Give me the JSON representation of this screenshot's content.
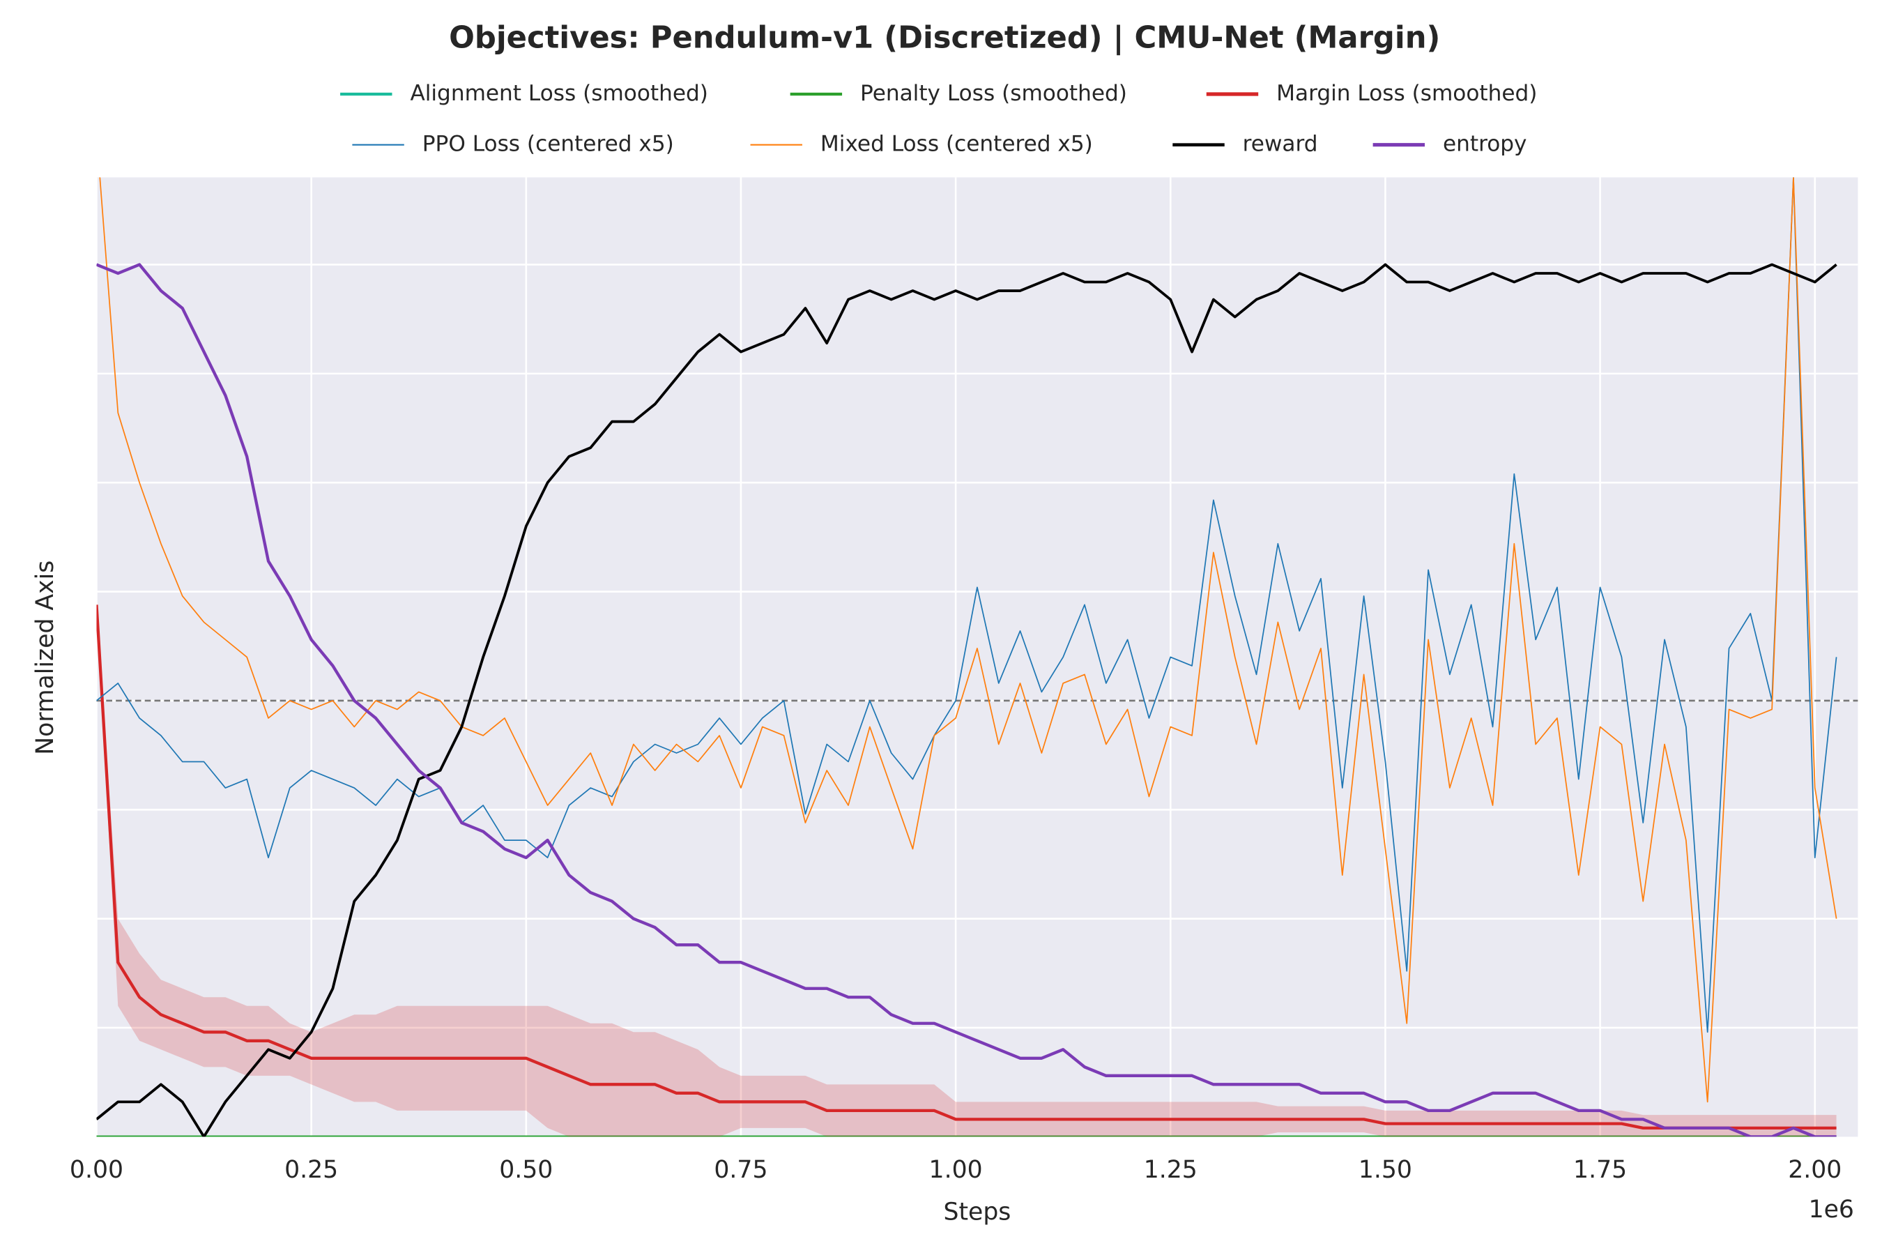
{
  "chart_data": {
    "type": "line",
    "title": "Objectives: Pendulum-v1 (Discretized) | CMU-Net (Margin)",
    "x_label": "Steps",
    "y_label": "Normalized Axis",
    "x_offset_label": "1e6",
    "xlim": [
      0,
      2050000
    ],
    "ylim": [
      0,
      1.1
    ],
    "xticks": [
      {
        "value": 0,
        "label": "0.00"
      },
      {
        "value": 250000,
        "label": "0.25"
      },
      {
        "value": 500000,
        "label": "0.50"
      },
      {
        "value": 750000,
        "label": "0.75"
      },
      {
        "value": 1000000,
        "label": "1.00"
      },
      {
        "value": 1250000,
        "label": "1.25"
      },
      {
        "value": 1500000,
        "label": "1.50"
      },
      {
        "value": 1750000,
        "label": "1.75"
      },
      {
        "value": 2000000,
        "label": "2.00"
      }
    ],
    "ygrid": [
      0.125,
      0.25,
      0.375,
      0.5,
      0.625,
      0.75,
      0.875,
      1.0
    ],
    "hline": 0.5,
    "grid": true,
    "x": [
      0,
      25000,
      50000,
      75000,
      100000,
      125000,
      150000,
      175000,
      200000,
      225000,
      250000,
      275000,
      300000,
      325000,
      350000,
      375000,
      400000,
      425000,
      450000,
      475000,
      500000,
      525000,
      550000,
      575000,
      600000,
      625000,
      650000,
      675000,
      700000,
      725000,
      750000,
      775000,
      800000,
      825000,
      850000,
      875000,
      900000,
      925000,
      950000,
      975000,
      1000000,
      1025000,
      1050000,
      1075000,
      1100000,
      1125000,
      1150000,
      1175000,
      1200000,
      1225000,
      1250000,
      1275000,
      1300000,
      1325000,
      1350000,
      1375000,
      1400000,
      1425000,
      1450000,
      1475000,
      1500000,
      1525000,
      1550000,
      1575000,
      1600000,
      1625000,
      1650000,
      1675000,
      1700000,
      1725000,
      1750000,
      1775000,
      1800000,
      1825000,
      1850000,
      1875000,
      1900000,
      1925000,
      1950000,
      1975000,
      2000000,
      2025000
    ],
    "series": [
      {
        "name": "Alignment Loss (smoothed)",
        "color": "#1abc9c",
        "linewidth": 2,
        "x": [
          0,
          2025000
        ],
        "values": [
          0,
          0
        ]
      },
      {
        "name": "Penalty Loss (smoothed)",
        "color": "#2ca02c",
        "linewidth": 2,
        "x": [
          0,
          2025000
        ],
        "values": [
          0,
          0
        ]
      },
      {
        "name": "Margin Loss (smoothed)",
        "color": "#d62728",
        "linewidth": 2.5,
        "values": [
          0.61,
          0.2,
          0.16,
          0.14,
          0.13,
          0.12,
          0.12,
          0.11,
          0.11,
          0.1,
          0.09,
          0.09,
          0.09,
          0.09,
          0.09,
          0.09,
          0.09,
          0.09,
          0.09,
          0.09,
          0.09,
          0.08,
          0.07,
          0.06,
          0.06,
          0.06,
          0.06,
          0.05,
          0.05,
          0.04,
          0.04,
          0.04,
          0.04,
          0.04,
          0.03,
          0.03,
          0.03,
          0.03,
          0.03,
          0.03,
          0.02,
          0.02,
          0.02,
          0.02,
          0.02,
          0.02,
          0.02,
          0.02,
          0.02,
          0.02,
          0.02,
          0.02,
          0.02,
          0.02,
          0.02,
          0.02,
          0.02,
          0.02,
          0.02,
          0.02,
          0.015,
          0.015,
          0.015,
          0.015,
          0.015,
          0.015,
          0.015,
          0.015,
          0.015,
          0.015,
          0.015,
          0.015,
          0.01,
          0.01,
          0.01,
          0.01,
          0.01,
          0.01,
          0.01,
          0.01,
          0.01,
          0.01
        ],
        "spread": [
          0,
          0.05,
          0.05,
          0.04,
          0.04,
          0.04,
          0.04,
          0.04,
          0.04,
          0.03,
          0.03,
          0.04,
          0.05,
          0.05,
          0.06,
          0.06,
          0.06,
          0.06,
          0.06,
          0.06,
          0.06,
          0.07,
          0.07,
          0.07,
          0.07,
          0.06,
          0.06,
          0.06,
          0.05,
          0.04,
          0.03,
          0.03,
          0.03,
          0.03,
          0.03,
          0.03,
          0.03,
          0.03,
          0.03,
          0.03,
          0.02,
          0.02,
          0.02,
          0.02,
          0.02,
          0.02,
          0.02,
          0.02,
          0.02,
          0.02,
          0.02,
          0.02,
          0.02,
          0.02,
          0.02,
          0.015,
          0.015,
          0.015,
          0.015,
          0.015,
          0.015,
          0.015,
          0.015,
          0.015,
          0.015,
          0.015,
          0.015,
          0.015,
          0.015,
          0.015,
          0.015,
          0.015,
          0.015,
          0.015,
          0.015,
          0.015,
          0.015,
          0.015,
          0.015,
          0.015,
          0.015,
          0.015
        ]
      },
      {
        "name": "PPO Loss (centered x5)",
        "color": "#1f77b4",
        "linewidth": 1,
        "values": [
          0.5,
          0.52,
          0.48,
          0.46,
          0.43,
          0.43,
          0.4,
          0.41,
          0.32,
          0.4,
          0.42,
          0.41,
          0.4,
          0.38,
          0.41,
          0.39,
          0.4,
          0.36,
          0.38,
          0.34,
          0.34,
          0.32,
          0.38,
          0.4,
          0.39,
          0.43,
          0.45,
          0.44,
          0.45,
          0.48,
          0.45,
          0.48,
          0.5,
          0.37,
          0.45,
          0.43,
          0.5,
          0.44,
          0.41,
          0.46,
          0.5,
          0.63,
          0.52,
          0.58,
          0.51,
          0.55,
          0.61,
          0.52,
          0.57,
          0.48,
          0.55,
          0.54,
          0.73,
          0.62,
          0.53,
          0.68,
          0.58,
          0.64,
          0.4,
          0.62,
          0.43,
          0.19,
          0.65,
          0.53,
          0.61,
          0.47,
          0.76,
          0.57,
          0.63,
          0.41,
          0.63,
          0.55,
          0.36,
          0.57,
          0.47,
          0.12,
          0.56,
          0.6,
          0.5,
          1.1,
          0.32,
          0.55
        ]
      },
      {
        "name": "Mixed Loss (centered x5)",
        "color": "#ff7f0e",
        "linewidth": 1,
        "values": [
          1.15,
          0.83,
          0.75,
          0.68,
          0.62,
          0.59,
          0.57,
          0.55,
          0.48,
          0.5,
          0.49,
          0.5,
          0.47,
          0.5,
          0.49,
          0.51,
          0.5,
          0.47,
          0.46,
          0.48,
          0.43,
          0.38,
          0.41,
          0.44,
          0.38,
          0.45,
          0.42,
          0.45,
          0.43,
          0.46,
          0.4,
          0.47,
          0.46,
          0.36,
          0.42,
          0.38,
          0.47,
          0.4,
          0.33,
          0.46,
          0.48,
          0.56,
          0.45,
          0.52,
          0.44,
          0.52,
          0.53,
          0.45,
          0.49,
          0.39,
          0.47,
          0.46,
          0.67,
          0.55,
          0.45,
          0.59,
          0.49,
          0.56,
          0.3,
          0.53,
          0.33,
          0.13,
          0.57,
          0.4,
          0.48,
          0.38,
          0.68,
          0.45,
          0.48,
          0.3,
          0.47,
          0.45,
          0.27,
          0.45,
          0.34,
          0.04,
          0.49,
          0.48,
          0.49,
          1.1,
          0.4,
          0.25
        ]
      },
      {
        "name": "reward",
        "color": "#000000",
        "linewidth": 2.2,
        "values": [
          0.02,
          0.04,
          0.04,
          0.06,
          0.04,
          0.0,
          0.04,
          0.07,
          0.1,
          0.09,
          0.12,
          0.17,
          0.27,
          0.3,
          0.34,
          0.41,
          0.42,
          0.47,
          0.55,
          0.62,
          0.7,
          0.75,
          0.78,
          0.79,
          0.82,
          0.82,
          0.84,
          0.87,
          0.9,
          0.92,
          0.9,
          0.91,
          0.92,
          0.95,
          0.91,
          0.96,
          0.97,
          0.96,
          0.97,
          0.96,
          0.97,
          0.96,
          0.97,
          0.97,
          0.98,
          0.99,
          0.98,
          0.98,
          0.99,
          0.98,
          0.96,
          0.9,
          0.96,
          0.94,
          0.96,
          0.97,
          0.99,
          0.98,
          0.97,
          0.98,
          1.0,
          0.98,
          0.98,
          0.97,
          0.98,
          0.99,
          0.98,
          0.99,
          0.99,
          0.98,
          0.99,
          0.98,
          0.99,
          0.99,
          0.99,
          0.98,
          0.99,
          0.99,
          1.0,
          0.99,
          0.98,
          1.0
        ]
      },
      {
        "name": "entropy",
        "color": "#7b3bb5",
        "linewidth": 2.5,
        "values": [
          1.0,
          0.99,
          1.0,
          0.97,
          0.95,
          0.9,
          0.85,
          0.78,
          0.66,
          0.62,
          0.57,
          0.54,
          0.5,
          0.48,
          0.45,
          0.42,
          0.4,
          0.36,
          0.35,
          0.33,
          0.32,
          0.34,
          0.3,
          0.28,
          0.27,
          0.25,
          0.24,
          0.22,
          0.22,
          0.2,
          0.2,
          0.19,
          0.18,
          0.17,
          0.17,
          0.16,
          0.16,
          0.14,
          0.13,
          0.13,
          0.12,
          0.11,
          0.1,
          0.09,
          0.09,
          0.1,
          0.08,
          0.07,
          0.07,
          0.07,
          0.07,
          0.07,
          0.06,
          0.06,
          0.06,
          0.06,
          0.06,
          0.05,
          0.05,
          0.05,
          0.04,
          0.04,
          0.03,
          0.03,
          0.04,
          0.05,
          0.05,
          0.05,
          0.04,
          0.03,
          0.03,
          0.02,
          0.02,
          0.01,
          0.01,
          0.01,
          0.01,
          0.0,
          0.0,
          0.01,
          0.0,
          0.0
        ]
      }
    ]
  }
}
